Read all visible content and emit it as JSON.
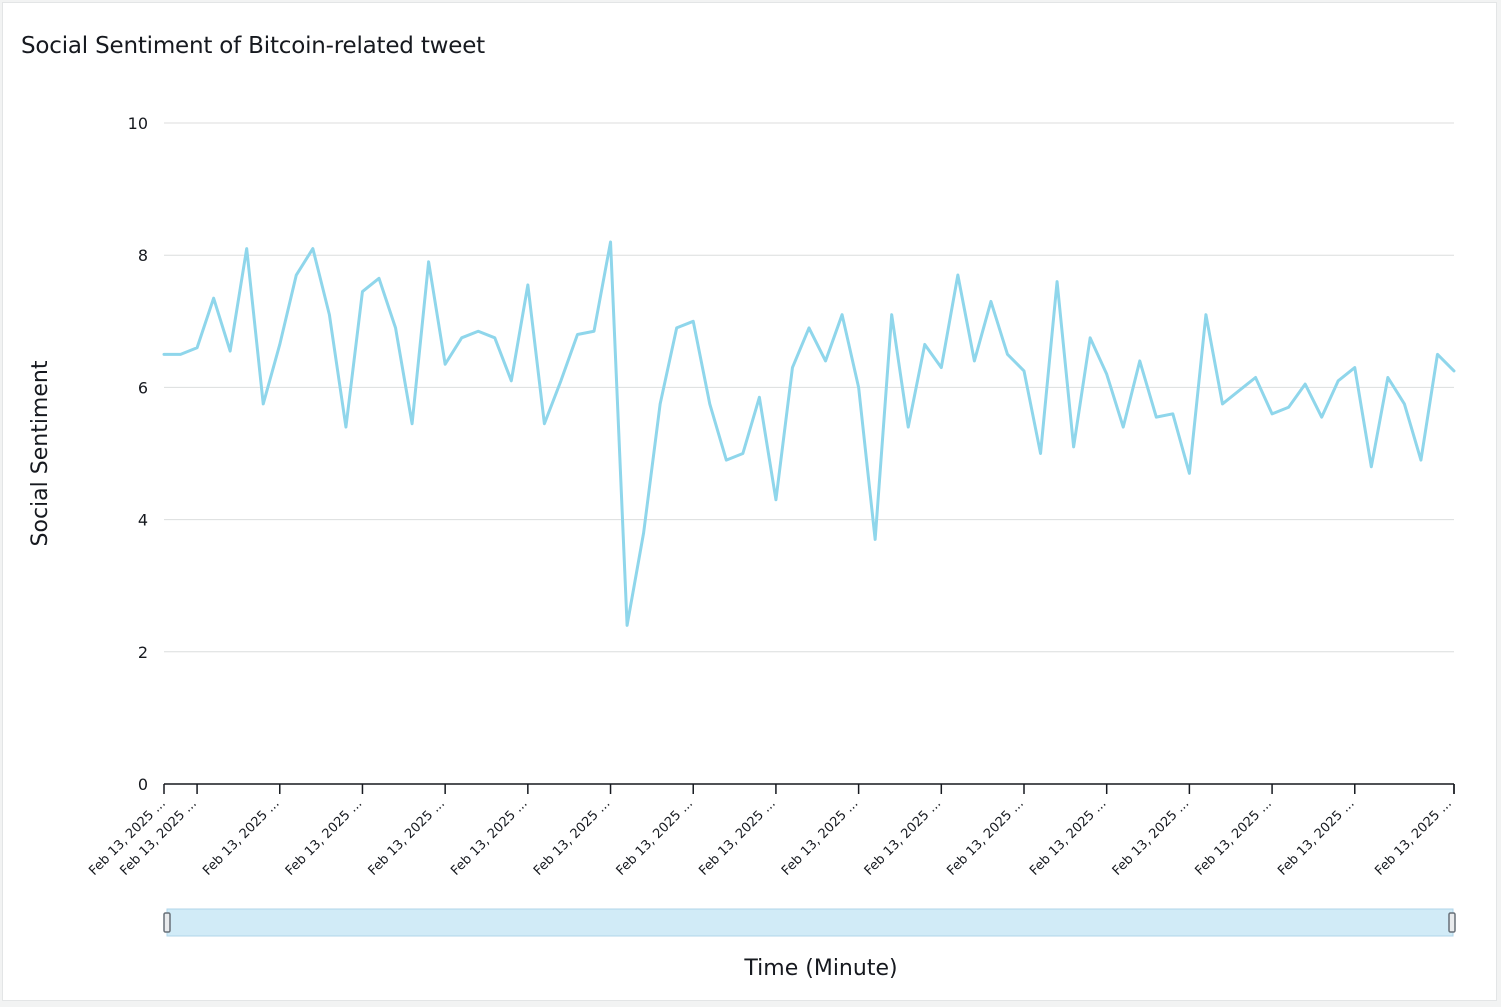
{
  "title": "Social Sentiment of Bitcoin-related tweet",
  "chart_data": {
    "type": "line",
    "title": "Social Sentiment of Bitcoin-related tweet",
    "xlabel": "Time (Minute)",
    "ylabel": "Social Sentiment",
    "ylim": [
      0,
      10
    ],
    "yticks": [
      0,
      2,
      4,
      6,
      8,
      10
    ],
    "grid": true,
    "legend": "none",
    "color": "#8fd6eb",
    "xtick_labels": [
      "Feb 13, 2025 ...",
      "Feb 13, 2025 ...",
      "Feb 13, 2025 ...",
      "Feb 13, 2025 ...",
      "Feb 13, 2025 ...",
      "Feb 13, 2025 ...",
      "Feb 13, 2025 ...",
      "Feb 13, 2025 ...",
      "Feb 13, 2025 ...",
      "Feb 13, 2025 ...",
      "Feb 13, 2025 ...",
      "Feb 13, 2025 ...",
      "Feb 13, 2025 ...",
      "Feb 13, 2025 ...",
      "Feb 13, 2025 ...",
      "Feb 13, 2025 ...",
      "Feb 13, 2025 ...",
      "Feb 13, 2025 ..."
    ],
    "values": [
      6.5,
      6.5,
      6.6,
      7.35,
      6.55,
      8.1,
      5.75,
      6.65,
      7.7,
      8.1,
      7.1,
      5.4,
      7.45,
      7.65,
      6.9,
      5.45,
      7.9,
      6.35,
      6.75,
      6.85,
      6.75,
      6.1,
      7.55,
      5.45,
      6.1,
      6.8,
      6.85,
      8.2,
      2.4,
      3.8,
      5.75,
      6.9,
      7.0,
      5.75,
      4.9,
      5.0,
      5.85,
      4.3,
      6.3,
      6.9,
      6.4,
      7.1,
      6.0,
      3.7,
      7.1,
      5.4,
      6.65,
      6.3,
      7.7,
      6.4,
      7.3,
      6.5,
      6.25,
      5.0,
      7.6,
      5.1,
      6.75,
      6.2,
      5.4,
      6.4,
      5.55,
      5.6,
      4.7,
      7.1,
      5.75,
      5.95,
      6.15,
      5.6,
      5.7,
      6.05,
      5.55,
      6.1,
      6.3,
      4.8,
      6.15,
      5.75,
      4.9,
      6.5,
      6.25
    ]
  }
}
